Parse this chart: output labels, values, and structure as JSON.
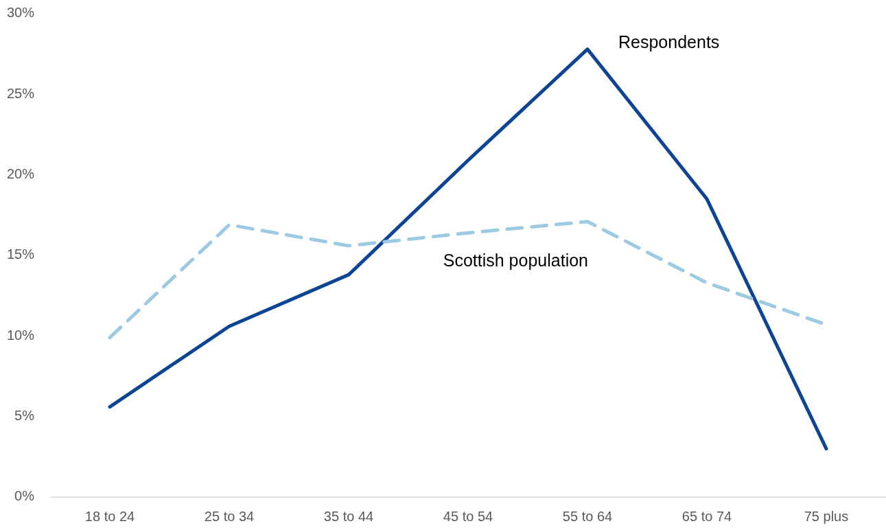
{
  "chart_data": {
    "type": "line",
    "categories": [
      "18 to 24",
      "25 to 34",
      "35 to 44",
      "45 to 54",
      "55 to 64",
      "65 to 74",
      "75 plus"
    ],
    "series": [
      {
        "name": "Respondents",
        "color": "#0d4594",
        "line_style": "solid",
        "values": [
          5.6,
          10.6,
          13.8,
          20.9,
          27.8,
          18.5,
          3.0
        ]
      },
      {
        "name": "Scottish population",
        "color": "#9ccae3",
        "line_style": "dashed",
        "values": [
          9.9,
          16.9,
          15.6,
          16.4,
          17.1,
          13.3,
          10.7
        ]
      }
    ],
    "ylim": [
      0,
      30
    ],
    "yticks": [
      {
        "value": 0,
        "label": "0%"
      },
      {
        "value": 5,
        "label": "5%"
      },
      {
        "value": 10,
        "label": "10%"
      },
      {
        "value": 15,
        "label": "15%"
      },
      {
        "value": 20,
        "label": "20%"
      },
      {
        "value": 25,
        "label": "25%"
      },
      {
        "value": 30,
        "label": "30%"
      }
    ]
  }
}
